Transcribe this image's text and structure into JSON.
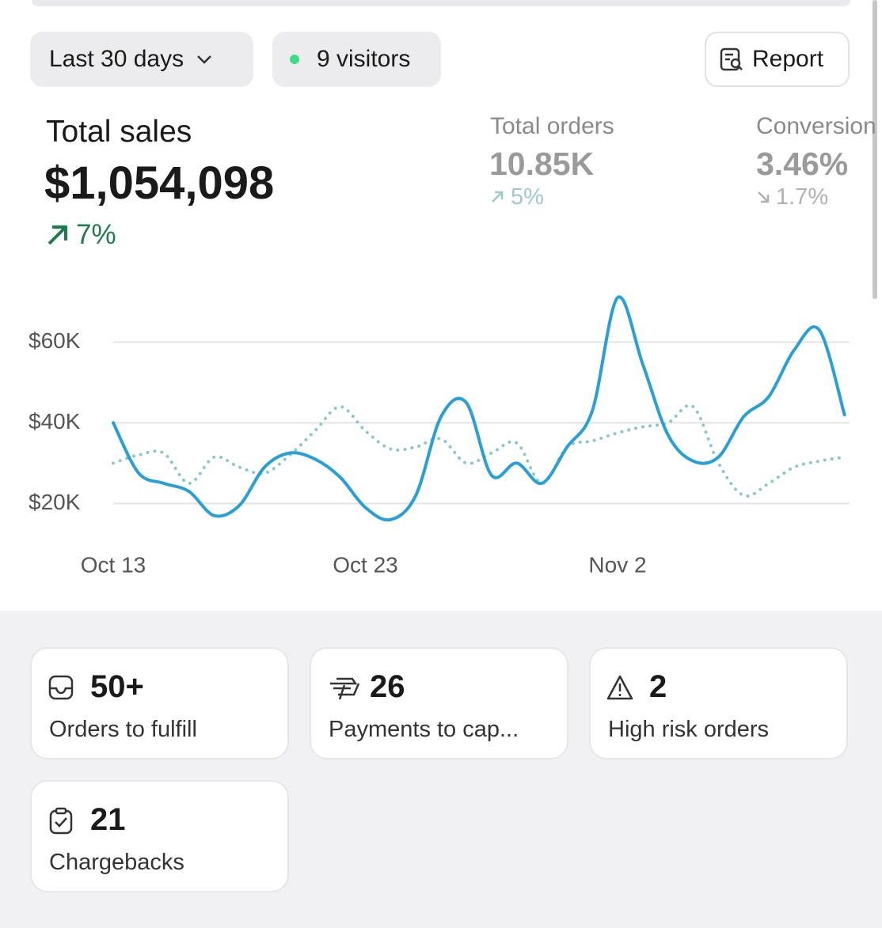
{
  "toolbar": {
    "range": "Last 30 days",
    "visitors": "9 visitors",
    "report": "Report"
  },
  "metrics": [
    {
      "label": "Total sales",
      "value": "$1,054,098",
      "change": "7%"
    },
    {
      "label": "Total orders",
      "value": "10.85K",
      "change": "5%"
    },
    {
      "label": "Conversion",
      "value": "3.46%",
      "change": "1.7%"
    }
  ],
  "chart_data": {
    "type": "line",
    "categories": [
      "Oct 13",
      null,
      null,
      null,
      null,
      null,
      null,
      null,
      null,
      null,
      "Oct 23",
      null,
      null,
      null,
      null,
      null,
      null,
      null,
      null,
      null,
      "Nov 2",
      null,
      null,
      null,
      null,
      null,
      null,
      null,
      null,
      null
    ],
    "series": [
      {
        "color": "#2a9fd6",
        "style": "solid",
        "values": [
          40000,
          27600,
          25000,
          23000,
          17000,
          19500,
          29000,
          32500,
          31000,
          26500,
          19000,
          16000,
          22000,
          41500,
          45000,
          27000,
          30000,
          25000,
          34000,
          43000,
          71000,
          54500,
          37000,
          30500,
          31500,
          41500,
          46500,
          58000,
          63000,
          42000
        ]
      },
      {
        "color": "#8cc7c9",
        "style": "dotted",
        "values": [
          30000,
          32000,
          32500,
          25000,
          31500,
          29000,
          27500,
          32000,
          38000,
          44000,
          38000,
          33500,
          34000,
          36000,
          30000,
          32500,
          35000,
          25000,
          34000,
          35500,
          37500,
          39000,
          40000,
          44000,
          30000,
          22000,
          25000,
          29000,
          30500,
          31500
        ]
      }
    ],
    "ylim": [
      14000,
      74000
    ],
    "yticks": [
      {
        "value": 20000,
        "label": "$20K"
      },
      {
        "value": 40000,
        "label": "$40K"
      },
      {
        "value": 60000,
        "label": "$60K"
      }
    ],
    "grid": true
  },
  "cards": [
    {
      "value": "50+",
      "label": "Orders to fulfill"
    },
    {
      "value": "26",
      "label": "Payments to cap..."
    },
    {
      "value": "2",
      "label": "High risk orders"
    },
    {
      "value": "21",
      "label": "Chargebacks"
    }
  ]
}
